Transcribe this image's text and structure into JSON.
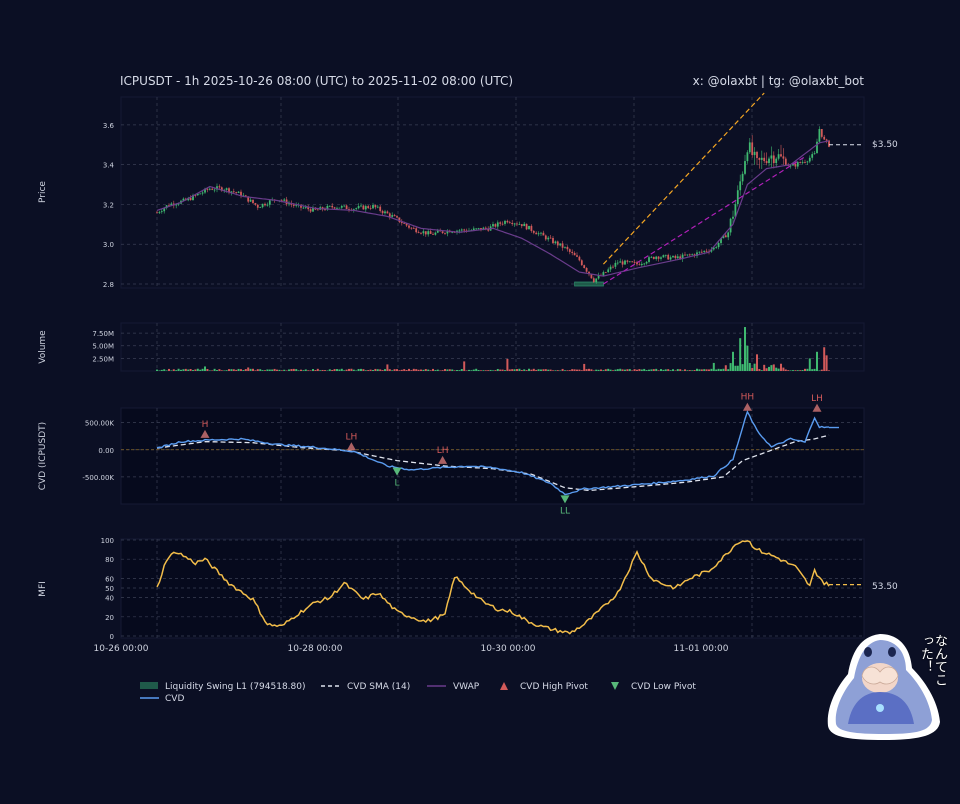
{
  "header": {
    "title": "ICPUSDT - 1h 2025-10-26 08:00 (UTC) to 2025-11-02 08:00 (UTC)",
    "credit": "x: @olaxbt | tg: @olaxbt_bot"
  },
  "colors": {
    "background": "#0b0f24",
    "bull": "#3fb970",
    "bear": "#d25a5a",
    "vwap": "#6a3c8c",
    "cvd": "#5a9cf0",
    "cvd_sma": "#e0e4ee",
    "mfi": "#f2bd4a",
    "liquidity_zone": "#1f5a4a",
    "trend_up": "#f5a623",
    "trend_low": "#b020b8",
    "pivot_high": "#c87070",
    "pivot_low": "#58b87a"
  },
  "sticker": {
    "text": "なんてこった！"
  },
  "chart_data": [
    {
      "type": "candlestick",
      "ylabel": "Price",
      "ylim": [
        2.78,
        3.74
      ],
      "yticks": [
        "2.8",
        "3.0",
        "3.2",
        "3.4",
        "3.6"
      ],
      "last_price_label": "$3.50",
      "price_anchors": [
        [
          0,
          3.16
        ],
        [
          5,
          3.2
        ],
        [
          12,
          3.22
        ],
        [
          22,
          3.28
        ],
        [
          28,
          3.28
        ],
        [
          35,
          3.25
        ],
        [
          42,
          3.19
        ],
        [
          50,
          3.23
        ],
        [
          58,
          3.19
        ],
        [
          66,
          3.17
        ],
        [
          74,
          3.19
        ],
        [
          82,
          3.18
        ],
        [
          90,
          3.19
        ],
        [
          98,
          3.14
        ],
        [
          106,
          3.08
        ],
        [
          114,
          3.05
        ],
        [
          122,
          3.07
        ],
        [
          130,
          3.07
        ],
        [
          138,
          3.08
        ],
        [
          146,
          3.12
        ],
        [
          152,
          3.1
        ],
        [
          158,
          3.06
        ],
        [
          164,
          3.02
        ],
        [
          170,
          2.98
        ],
        [
          176,
          2.92
        ],
        [
          182,
          2.82
        ],
        [
          186,
          2.85
        ],
        [
          192,
          2.91
        ],
        [
          200,
          2.9
        ],
        [
          208,
          2.94
        ],
        [
          216,
          2.93
        ],
        [
          224,
          2.95
        ],
        [
          232,
          2.98
        ],
        [
          238,
          3.06
        ],
        [
          242,
          3.25
        ],
        [
          246,
          3.5
        ],
        [
          250,
          3.4
        ],
        [
          254,
          3.44
        ],
        [
          258,
          3.45
        ],
        [
          264,
          3.39
        ],
        [
          270,
          3.42
        ],
        [
          274,
          3.45
        ],
        [
          276,
          3.58
        ],
        [
          278,
          3.52
        ],
        [
          280,
          3.5
        ]
      ],
      "vwap_anchors": [
        [
          0,
          3.17
        ],
        [
          10,
          3.21
        ],
        [
          22,
          3.29
        ],
        [
          36,
          3.24
        ],
        [
          50,
          3.22
        ],
        [
          66,
          3.18
        ],
        [
          82,
          3.17
        ],
        [
          96,
          3.14
        ],
        [
          110,
          3.08
        ],
        [
          126,
          3.06
        ],
        [
          140,
          3.08
        ],
        [
          152,
          3.03
        ],
        [
          164,
          2.95
        ],
        [
          176,
          2.86
        ],
        [
          186,
          2.84
        ],
        [
          200,
          2.88
        ],
        [
          216,
          2.92
        ],
        [
          230,
          2.96
        ],
        [
          240,
          3.1
        ],
        [
          246,
          3.3
        ],
        [
          254,
          3.38
        ],
        [
          264,
          3.4
        ],
        [
          276,
          3.51
        ],
        [
          280,
          3.52
        ]
      ],
      "liquidity_zone": {
        "x": [
          174,
          186
        ],
        "y": [
          2.79,
          2.81
        ]
      },
      "trend_lines": [
        {
          "x": [
            186,
            253
          ],
          "y": [
            2.9,
            3.76
          ],
          "style": "dashed-orange"
        },
        {
          "x": [
            186,
            270
          ],
          "y": [
            2.8,
            3.44
          ],
          "style": "dashed-purple"
        }
      ]
    },
    {
      "type": "bar",
      "ylabel": "Volume",
      "ylim": [
        0,
        9.5
      ],
      "yticks": [
        "2.50M",
        "5.00M",
        "7.50M"
      ],
      "volume_spikes": [
        [
          20,
          0.9
        ],
        [
          38,
          0.7
        ],
        [
          96,
          1.3
        ],
        [
          128,
          1.9
        ],
        [
          146,
          2.4
        ],
        [
          178,
          1.4
        ],
        [
          232,
          1.6
        ],
        [
          240,
          3.8
        ],
        [
          243,
          6.5
        ],
        [
          245,
          8.7
        ],
        [
          246,
          5
        ],
        [
          250,
          3.3
        ],
        [
          272,
          2.5
        ],
        [
          275,
          3.8
        ],
        [
          278,
          4.7
        ],
        [
          279,
          3.1
        ]
      ]
    },
    {
      "type": "line",
      "ylabel": "CVD (ICPUSDT)",
      "ylim": [
        -1000,
        770
      ],
      "yticks": [
        "-500.00K",
        "0.00",
        "500.00K"
      ],
      "cvd_anchors": [
        [
          0,
          30
        ],
        [
          10,
          150
        ],
        [
          22,
          180
        ],
        [
          35,
          200
        ],
        [
          50,
          100
        ],
        [
          65,
          50
        ],
        [
          82,
          -30
        ],
        [
          96,
          -300
        ],
        [
          106,
          -370
        ],
        [
          118,
          -330
        ],
        [
          130,
          -300
        ],
        [
          140,
          -330
        ],
        [
          152,
          -420
        ],
        [
          164,
          -620
        ],
        [
          170,
          -820
        ],
        [
          178,
          -720
        ],
        [
          190,
          -680
        ],
        [
          206,
          -620
        ],
        [
          220,
          -560
        ],
        [
          232,
          -480
        ],
        [
          240,
          -180
        ],
        [
          246,
          700
        ],
        [
          250,
          350
        ],
        [
          256,
          50
        ],
        [
          264,
          200
        ],
        [
          270,
          140
        ],
        [
          274,
          600
        ],
        [
          276,
          420
        ],
        [
          280,
          410
        ]
      ],
      "sma_anchors": [
        [
          0,
          30
        ],
        [
          20,
          150
        ],
        [
          40,
          130
        ],
        [
          60,
          40
        ],
        [
          80,
          -20
        ],
        [
          100,
          -200
        ],
        [
          120,
          -300
        ],
        [
          140,
          -350
        ],
        [
          156,
          -450
        ],
        [
          170,
          -700
        ],
        [
          180,
          -750
        ],
        [
          200,
          -680
        ],
        [
          220,
          -600
        ],
        [
          236,
          -500
        ],
        [
          244,
          -200
        ],
        [
          254,
          -40
        ],
        [
          266,
          150
        ],
        [
          274,
          200
        ],
        [
          280,
          270
        ]
      ],
      "pivots": [
        {
          "type": "high",
          "label": "H",
          "x": 20,
          "y": 220
        },
        {
          "type": "high",
          "label": "LH",
          "x": 81,
          "y": -10
        },
        {
          "type": "low",
          "label": "L",
          "x": 100,
          "y": -330
        },
        {
          "type": "high",
          "label": "LH",
          "x": 119,
          "y": -260
        },
        {
          "type": "low",
          "label": "LL",
          "x": 170,
          "y": -840
        },
        {
          "type": "high",
          "label": "HH",
          "x": 246,
          "y": 720
        },
        {
          "type": "high",
          "label": "LH",
          "x": 275,
          "y": 700
        }
      ]
    },
    {
      "type": "line",
      "ylabel": "MFI",
      "ylim": [
        0,
        100
      ],
      "yticks": [
        "0",
        "20",
        "40",
        "50",
        "60",
        "80",
        "100"
      ],
      "last_value_label": "53.50",
      "mfi_anchors": [
        [
          0,
          50
        ],
        [
          4,
          80
        ],
        [
          8,
          88
        ],
        [
          12,
          82
        ],
        [
          16,
          76
        ],
        [
          20,
          80
        ],
        [
          24,
          70
        ],
        [
          30,
          55
        ],
        [
          34,
          48
        ],
        [
          40,
          38
        ],
        [
          46,
          12
        ],
        [
          52,
          10
        ],
        [
          58,
          22
        ],
        [
          66,
          35
        ],
        [
          72,
          40
        ],
        [
          78,
          55
        ],
        [
          86,
          38
        ],
        [
          92,
          45
        ],
        [
          100,
          25
        ],
        [
          106,
          20
        ],
        [
          112,
          15
        ],
        [
          120,
          22
        ],
        [
          124,
          62
        ],
        [
          130,
          48
        ],
        [
          136,
          35
        ],
        [
          142,
          28
        ],
        [
          148,
          25
        ],
        [
          154,
          16
        ],
        [
          160,
          10
        ],
        [
          166,
          6
        ],
        [
          172,
          3
        ],
        [
          178,
          12
        ],
        [
          186,
          30
        ],
        [
          192,
          45
        ],
        [
          200,
          87
        ],
        [
          206,
          60
        ],
        [
          210,
          55
        ],
        [
          216,
          50
        ],
        [
          222,
          60
        ],
        [
          230,
          68
        ],
        [
          236,
          82
        ],
        [
          242,
          98
        ],
        [
          246,
          100
        ],
        [
          250,
          90
        ],
        [
          258,
          82
        ],
        [
          266,
          72
        ],
        [
          272,
          52
        ],
        [
          274,
          68
        ],
        [
          278,
          55
        ],
        [
          280,
          53.5
        ]
      ]
    }
  ],
  "xaxis": {
    "tick_labels": [
      "10-26 00:00",
      "10-28 00:00",
      "10-30 00:00",
      "11-01 00:00"
    ]
  },
  "legend": {
    "items": [
      {
        "label": "Liquidity Swing L1 (794518.80)",
        "key": "liquidity"
      },
      {
        "label": "CVD SMA (14)",
        "key": "cvd_sma"
      },
      {
        "label": "VWAP",
        "key": "vwap"
      },
      {
        "label": "CVD High Pivot",
        "key": "pivot_high"
      },
      {
        "label": "CVD Low Pivot",
        "key": "pivot_low"
      },
      {
        "label": "CVD",
        "key": "cvd"
      }
    ]
  }
}
